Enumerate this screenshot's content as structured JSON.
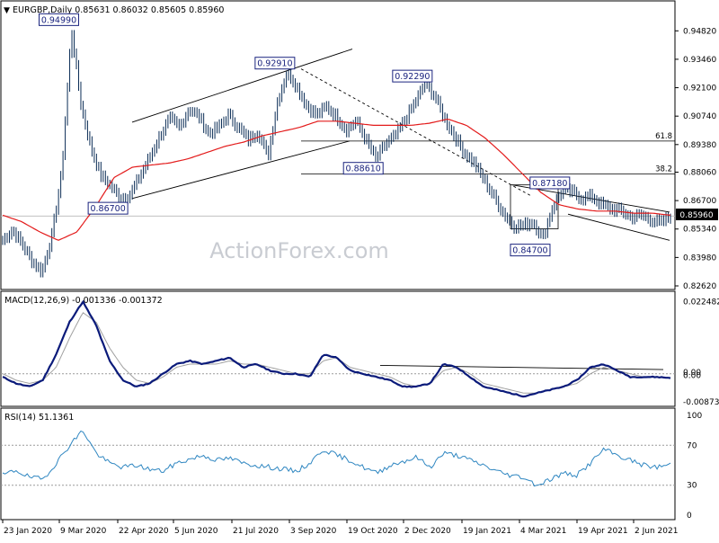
{
  "header": {
    "symbol_line": "EURGBP,Daily  0.85631 0.86032 0.85605 0.85960",
    "macd_label": "MACD(12,26,9) -0.001336 -0.001372",
    "rsi_label": "RSI(14) 51.1361",
    "watermark": "ActionForex.com",
    "current_price_tag": "0.85960"
  },
  "colors": {
    "candle": "#0b2d56",
    "ema": "#e31b1b",
    "macd_line": "#0a1a7a",
    "signal_line": "#a0a0a0",
    "rsi_line": "#2e86c1",
    "box_border": "#1a237e",
    "background": "#ffffff"
  },
  "chart_data": [
    {
      "type": "candlestick",
      "panel": "price",
      "title": "EURGBP,Daily",
      "ohlc_last": {
        "open": 0.85631,
        "high": 0.86032,
        "low": 0.85605,
        "close": 0.8596
      },
      "ylim": [
        0.8262,
        0.9565
      ],
      "y_ticks": [
        "0.94820",
        "0.93460",
        "0.92100",
        "0.90740",
        "0.89380",
        "0.88060",
        "0.86700",
        "0.85340",
        "0.83980",
        "0.82620"
      ],
      "x_ticks": [
        "23 Jan 2020",
        "9 Mar 2020",
        "22 Apr 2020",
        "5 Jun 2020",
        "21 Jul 2020",
        "3 Sep 2020",
        "19 Oct 2020",
        "2 Dec 2020",
        "19 Jan 2021",
        "4 Mar 2021",
        "19 Apr 2021",
        "2 Jun 2021"
      ],
      "price_path_approx": [
        0.848,
        0.853,
        0.846,
        0.838,
        0.833,
        0.85,
        0.88,
        0.949,
        0.912,
        0.892,
        0.879,
        0.874,
        0.868,
        0.87,
        0.879,
        0.888,
        0.898,
        0.906,
        0.902,
        0.911,
        0.907,
        0.899,
        0.902,
        0.908,
        0.902,
        0.896,
        0.9,
        0.888,
        0.915,
        0.929,
        0.921,
        0.912,
        0.908,
        0.912,
        0.907,
        0.901,
        0.905,
        0.896,
        0.887,
        0.894,
        0.898,
        0.906,
        0.914,
        0.923,
        0.917,
        0.906,
        0.898,
        0.89,
        0.885,
        0.877,
        0.869,
        0.861,
        0.855,
        0.855,
        0.857,
        0.849,
        0.864,
        0.872,
        0.871,
        0.868,
        0.869,
        0.865,
        0.863,
        0.862,
        0.859,
        0.86,
        0.858,
        0.856,
        0.8596
      ],
      "ema_path_approx": [
        0.86,
        0.857,
        0.852,
        0.848,
        0.852,
        0.864,
        0.878,
        0.883,
        0.884,
        0.885,
        0.887,
        0.89,
        0.893,
        0.895,
        0.898,
        0.9,
        0.902,
        0.905,
        0.905,
        0.904,
        0.903,
        0.903,
        0.903,
        0.904,
        0.906,
        0.903,
        0.897,
        0.889,
        0.88,
        0.871,
        0.865,
        0.863,
        0.862,
        0.862,
        0.861,
        0.861,
        0.86
      ],
      "annotations": [
        {
          "label": "0.94990",
          "x_index": 7,
          "y": 0.9499
        },
        {
          "label": "0.86700",
          "x_index": 12,
          "y": 0.867
        },
        {
          "label": "0.92910",
          "x_index": 29,
          "y": 0.9291
        },
        {
          "label": "0.88610",
          "x_index": 38,
          "y": 0.8861
        },
        {
          "label": "0.92290",
          "x_index": 43,
          "y": 0.9229
        },
        {
          "label": "0.84700",
          "x_index": 55,
          "y": 0.847
        },
        {
          "label": "0.87180",
          "x_index": 57,
          "y": 0.8718
        }
      ],
      "levels": [
        {
          "label": "61.8",
          "y": 0.8955
        },
        {
          "label": "38.2",
          "y": 0.8798
        }
      ]
    },
    {
      "type": "line",
      "panel": "macd",
      "title": "MACD(12,26,9)",
      "ylim": [
        -0.009,
        0.0228
      ],
      "y_ticks": [
        "0.022482",
        "0.00",
        "0.00",
        "-0.008736"
      ],
      "series": [
        {
          "name": "MACD",
          "values": [
            -0.001,
            -0.003,
            -0.004,
            -0.002,
            0.006,
            0.016,
            0.0224,
            0.015,
            0.004,
            -0.002,
            -0.004,
            -0.003,
            0.0,
            0.003,
            0.004,
            0.003,
            0.004,
            0.005,
            0.002,
            0.003,
            0.001,
            0.0,
            0.0,
            -0.001,
            0.006,
            0.005,
            0.001,
            0.0,
            -0.001,
            -0.002,
            -0.004,
            -0.004,
            -0.003,
            0.003,
            0.002,
            -0.001,
            -0.004,
            -0.005,
            -0.006,
            -0.007,
            -0.006,
            -0.005,
            -0.004,
            -0.002,
            0.002,
            0.003,
            0.001,
            -0.001,
            -0.001,
            -0.001,
            -0.0013
          ]
        },
        {
          "name": "Signal",
          "values": [
            0.0,
            -0.002,
            -0.003,
            -0.002,
            0.002,
            0.011,
            0.019,
            0.016,
            0.008,
            0.002,
            -0.002,
            -0.003,
            -0.001,
            0.002,
            0.003,
            0.003,
            0.003,
            0.004,
            0.003,
            0.003,
            0.002,
            0.001,
            0.0,
            0.0,
            0.004,
            0.005,
            0.002,
            0.001,
            0.0,
            -0.001,
            -0.003,
            -0.004,
            -0.003,
            0.001,
            0.002,
            0.0,
            -0.003,
            -0.004,
            -0.005,
            -0.006,
            -0.006,
            -0.005,
            -0.004,
            -0.003,
            0.0,
            0.002,
            0.001,
            0.0,
            -0.001,
            -0.001,
            -0.0014
          ]
        }
      ]
    },
    {
      "type": "line",
      "panel": "rsi",
      "title": "RSI(14)",
      "ylim": [
        0,
        100
      ],
      "y_ticks": [
        "100",
        "70",
        "30",
        "0"
      ],
      "series": [
        {
          "name": "RSI",
          "values": [
            40,
            45,
            38,
            36,
            52,
            70,
            85,
            62,
            52,
            48,
            50,
            46,
            44,
            52,
            56,
            60,
            55,
            57,
            52,
            50,
            48,
            46,
            44,
            52,
            66,
            60,
            55,
            48,
            42,
            50,
            54,
            58,
            48,
            62,
            60,
            55,
            50,
            44,
            40,
            38,
            30,
            36,
            42,
            40,
            52,
            66,
            60,
            55,
            50,
            48,
            51.1
          ]
        }
      ]
    }
  ]
}
